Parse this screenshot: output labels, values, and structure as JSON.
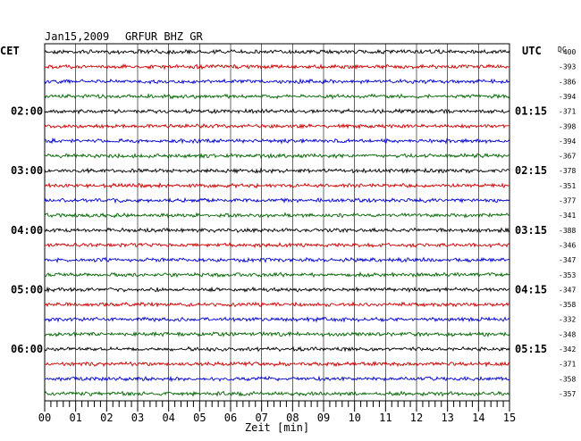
{
  "header": {
    "date": "Jan15,2009",
    "station": "GRFUR BHZ GR",
    "left_tz": "CET",
    "right_tz": "UTC",
    "dc_label": "DC"
  },
  "chart_data": {
    "type": "line",
    "title": "Jan15,2009   GRFUR BHZ GR",
    "xlabel": "Zeit [min]",
    "xlim": [
      0,
      15
    ],
    "x_ticks": [
      "00",
      "01",
      "02",
      "03",
      "04",
      "05",
      "06",
      "07",
      "08",
      "09",
      "10",
      "11",
      "12",
      "13",
      "14",
      "15"
    ],
    "grid": true,
    "trace_colors": [
      "#000000",
      "#cc0000",
      "#0000cc",
      "#006600"
    ],
    "left_time_labels": [
      {
        "row": 4,
        "text": "02:00"
      },
      {
        "row": 8,
        "text": "03:00"
      },
      {
        "row": 12,
        "text": "04:00"
      },
      {
        "row": 16,
        "text": "05:00"
      },
      {
        "row": 20,
        "text": "06:00"
      }
    ],
    "right_time_labels": [
      {
        "row": 4,
        "text": "01:15"
      },
      {
        "row": 8,
        "text": "02:15"
      },
      {
        "row": 12,
        "text": "03:15"
      },
      {
        "row": 16,
        "text": "04:15"
      },
      {
        "row": 20,
        "text": "05:15"
      }
    ],
    "dc_offsets": [
      "-400",
      "-393",
      "-386",
      "-394",
      "-371",
      "-398",
      "-394",
      "-367",
      "-378",
      "-351",
      "-377",
      "-341",
      "-388",
      "-346",
      "-347",
      "-353",
      "-347",
      "-358",
      "-332",
      "-348",
      "-342",
      "-371",
      "-358",
      "-357"
    ]
  }
}
